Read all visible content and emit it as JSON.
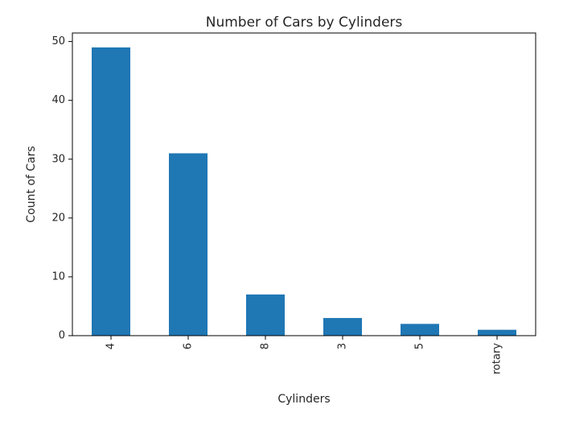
{
  "chart_data": {
    "type": "bar",
    "title": "Number of Cars by Cylinders",
    "xlabel": "Cylinders",
    "ylabel": "Count of Cars",
    "categories": [
      "4",
      "6",
      "8",
      "3",
      "5",
      "rotary"
    ],
    "values": [
      49,
      31,
      7,
      3,
      2,
      1
    ],
    "ylim": [
      0,
      51.45
    ],
    "yticks": [
      0,
      10,
      20,
      30,
      40,
      50
    ],
    "bar_color": "#1f77b4",
    "grid": false,
    "legend": "none",
    "xtick_rotation": "vertical"
  }
}
